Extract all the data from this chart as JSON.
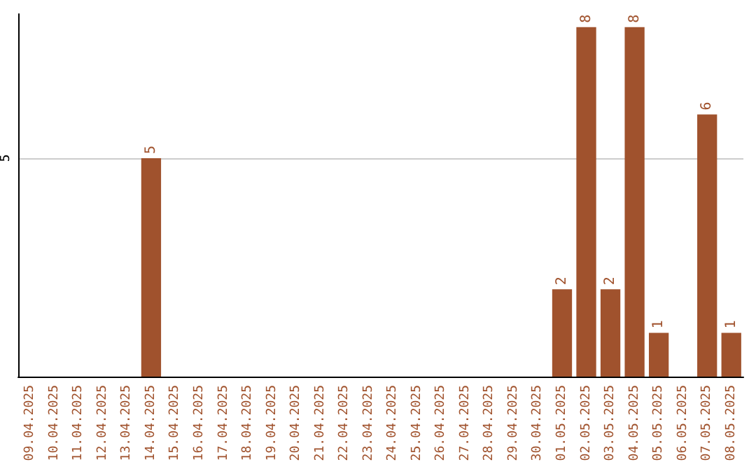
{
  "chart_data": {
    "type": "bar",
    "categories": [
      "09.04.2025",
      "10.04.2025",
      "11.04.2025",
      "12.04.2025",
      "13.04.2025",
      "14.04.2025",
      "15.04.2025",
      "16.04.2025",
      "17.04.2025",
      "18.04.2025",
      "19.04.2025",
      "20.04.2025",
      "21.04.2025",
      "22.04.2025",
      "23.04.2025",
      "24.04.2025",
      "25.04.2025",
      "26.04.2025",
      "27.04.2025",
      "28.04.2025",
      "29.04.2025",
      "30.04.2025",
      "01.05.2025",
      "02.05.2025",
      "03.05.2025",
      "04.05.2025",
      "05.05.2025",
      "06.05.2025",
      "07.05.2025",
      "08.05.2025"
    ],
    "values": [
      0,
      0,
      0,
      0,
      0,
      5,
      0,
      0,
      0,
      0,
      0,
      0,
      0,
      0,
      0,
      0,
      0,
      0,
      0,
      0,
      0,
      0,
      2,
      8,
      2,
      8,
      1,
      0,
      6,
      1
    ],
    "value_labels": [
      null,
      null,
      null,
      null,
      null,
      "5",
      null,
      null,
      null,
      null,
      null,
      null,
      null,
      null,
      null,
      null,
      null,
      null,
      null,
      null,
      null,
      null,
      "2",
      "8",
      "2",
      "8",
      "1",
      null,
      "6",
      "1"
    ],
    "color": "#a0522d",
    "ylim": [
      0,
      8.3
    ],
    "yticks": [
      5
    ],
    "grid": "y"
  }
}
